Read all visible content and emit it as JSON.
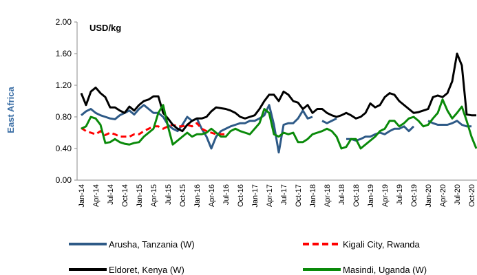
{
  "chart_data": {
    "type": "line",
    "title": "USD/kg",
    "ylabel": "East Africa",
    "categories": [
      "Jan-14",
      null,
      null,
      "Apr-14",
      null,
      null,
      "Jul-14",
      null,
      null,
      "Oct-14",
      null,
      null,
      "Jan-15",
      null,
      null,
      "Apr-15",
      null,
      null,
      "Jul-15",
      null,
      null,
      "Oct-15",
      null,
      null,
      "Jan-16",
      null,
      null,
      "Apr-16",
      null,
      null,
      "Jul-16",
      null,
      null,
      "Oct-16",
      null,
      null,
      "Jan-17",
      null,
      null,
      "Apr-17",
      null,
      null,
      "Jul-17",
      null,
      null,
      "Oct-17",
      null,
      null,
      "Jan-18",
      null,
      null,
      "Apr-18",
      null,
      null,
      "Jul-18",
      null,
      null,
      "Oct-18",
      null,
      null,
      "Jan-19",
      null,
      null,
      "Apr-19",
      null,
      null,
      "Jul-19",
      null,
      null,
      "Oct-19",
      null,
      null,
      "Jan-20",
      null,
      null,
      "Apr-20",
      null,
      null,
      "Jul-20",
      null,
      null,
      "Oct-20",
      null
    ],
    "series": [
      {
        "name": "Arusha, Tanzania  (W)",
        "color": "#2e5a87",
        "values": [
          0.82,
          0.87,
          0.9,
          0.85,
          0.82,
          0.8,
          0.78,
          0.77,
          0.82,
          0.85,
          0.88,
          0.83,
          0.9,
          0.95,
          0.9,
          0.85,
          0.85,
          0.8,
          0.7,
          0.65,
          0.62,
          0.7,
          0.8,
          0.75,
          0.78,
          0.65,
          0.55,
          0.4,
          0.55,
          0.62,
          0.65,
          0.68,
          0.7,
          0.72,
          0.72,
          0.75,
          0.75,
          0.78,
          0.82,
          0.95,
          0.7,
          0.35,
          0.7,
          0.72,
          0.72,
          0.78,
          0.88,
          0.78,
          0.8,
          null,
          0.75,
          0.72,
          0.75,
          0.78,
          null,
          0.52,
          0.52,
          0.5,
          0.52,
          0.55,
          0.55,
          0.58,
          0.6,
          0.58,
          0.62,
          0.65,
          0.65,
          0.68,
          0.62,
          0.68,
          null,
          null,
          0.75,
          0.72,
          0.7,
          0.7,
          0.7,
          0.72,
          0.75,
          0.7,
          0.68,
          0.68,
          null
        ]
      },
      {
        "name": "Kigali City, Rwanda",
        "color": "#ff0000",
        "dashed": true,
        "values": [
          0.66,
          0.62,
          0.6,
          0.58,
          0.62,
          0.57,
          0.6,
          0.58,
          0.55,
          0.55,
          0.55,
          0.58,
          0.58,
          0.62,
          0.65,
          0.68,
          0.68,
          0.65,
          0.68,
          0.7,
          0.68,
          0.68,
          0.7,
          0.68,
          0.72,
          0.65,
          0.62,
          0.6,
          0.58,
          0.58,
          0.58,
          null,
          null,
          null,
          null,
          null,
          null,
          null,
          null,
          null,
          null,
          null,
          null,
          null,
          null,
          null,
          null,
          null,
          null,
          null,
          null,
          null,
          null,
          null,
          null,
          null,
          null,
          null,
          null,
          null,
          null,
          null,
          null,
          null,
          null,
          null,
          null,
          null,
          null,
          null,
          null,
          null,
          null,
          null,
          null,
          null,
          null,
          null,
          null,
          null,
          null,
          null,
          null
        ]
      },
      {
        "name": "Eldoret, Kenya  (W)",
        "color": "#000000",
        "values": [
          1.1,
          0.95,
          1.12,
          1.17,
          1.1,
          1.05,
          0.92,
          0.92,
          0.88,
          0.85,
          0.93,
          0.88,
          0.95,
          1.0,
          1.02,
          1.06,
          1.06,
          0.85,
          0.78,
          0.7,
          0.65,
          0.62,
          0.7,
          0.75,
          0.78,
          0.78,
          0.8,
          0.87,
          0.92,
          0.91,
          0.9,
          0.88,
          0.85,
          0.8,
          0.78,
          0.8,
          0.82,
          0.9,
          1.0,
          1.08,
          1.08,
          1.0,
          1.12,
          1.08,
          1.0,
          0.98,
          0.9,
          0.95,
          0.85,
          0.9,
          0.9,
          0.85,
          0.82,
          0.8,
          0.82,
          0.85,
          0.82,
          0.78,
          0.8,
          0.85,
          0.97,
          0.92,
          0.95,
          1.05,
          1.1,
          1.08,
          1.0,
          0.95,
          0.9,
          0.85,
          0.86,
          0.88,
          0.9,
          1.05,
          1.07,
          1.05,
          1.1,
          1.25,
          1.6,
          1.45,
          0.83,
          0.82,
          0.82
        ]
      },
      {
        "name": "Masindi, Uganda  (W)",
        "color": "#0a8a0a",
        "values": [
          0.65,
          0.68,
          0.8,
          0.78,
          0.7,
          0.47,
          0.48,
          0.52,
          0.48,
          0.46,
          0.45,
          0.47,
          0.48,
          0.55,
          0.6,
          0.65,
          0.85,
          0.95,
          0.68,
          0.45,
          0.5,
          0.55,
          0.6,
          0.55,
          0.58,
          0.58,
          0.6,
          0.65,
          0.6,
          0.55,
          0.55,
          0.62,
          0.65,
          0.62,
          0.6,
          0.58,
          0.65,
          0.72,
          0.9,
          0.85,
          0.58,
          0.55,
          0.6,
          0.58,
          0.6,
          0.48,
          0.48,
          0.52,
          0.58,
          0.6,
          0.62,
          0.65,
          0.62,
          0.55,
          0.4,
          0.42,
          0.52,
          0.52,
          0.4,
          0.45,
          0.5,
          0.55,
          0.62,
          0.65,
          0.75,
          0.75,
          0.68,
          0.72,
          0.78,
          0.8,
          0.75,
          0.68,
          0.7,
          0.78,
          0.85,
          1.02,
          0.88,
          0.78,
          0.85,
          0.93,
          0.75,
          0.55,
          0.4
        ]
      }
    ],
    "ylim": [
      0,
      2
    ],
    "yticks": [
      {
        "value": 0,
        "label": "0.00"
      },
      {
        "value": 0.4,
        "label": "0.40"
      },
      {
        "value": 0.8,
        "label": "0.80"
      },
      {
        "value": 1.2,
        "label": "1.20"
      },
      {
        "value": 1.6,
        "label": "1.60"
      },
      {
        "value": 2,
        "label": "2.00"
      }
    ],
    "grid": false
  }
}
